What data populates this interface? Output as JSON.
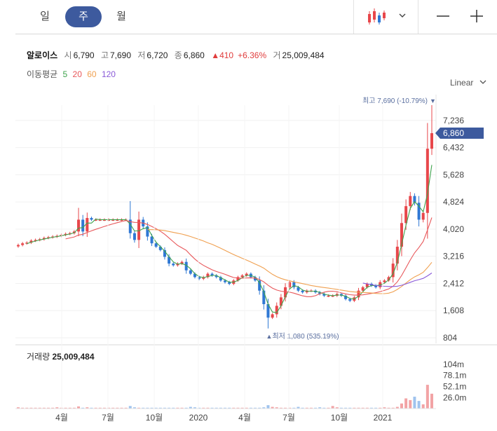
{
  "tabs": [
    {
      "label": "일",
      "active": false
    },
    {
      "label": "주",
      "active": true
    },
    {
      "label": "월",
      "active": false
    }
  ],
  "toolbar": {
    "chart_type_icon": "candlestick-icon",
    "dropdown_icon": "chevron-down-icon",
    "minus_icon": "zoom-out-icon",
    "plus_icon": "zoom-in-icon"
  },
  "stock": {
    "name": "알로이스",
    "open_label": "시",
    "open": "6,790",
    "high_label": "고",
    "high": "7,690",
    "low_label": "저",
    "low": "6,720",
    "close_label": "종",
    "close": "6,860",
    "change": "▲410",
    "change_pct": "+6.36%",
    "volume_label": "거",
    "volume": "25,009,484"
  },
  "ma": {
    "label": "이동평균",
    "items": [
      {
        "label": "5",
        "color": "#3fa34d"
      },
      {
        "label": "20",
        "color": "#e8575a"
      },
      {
        "label": "60",
        "color": "#f0a050"
      },
      {
        "label": "120",
        "color": "#8a5ad8"
      }
    ]
  },
  "scale_label": "Linear",
  "colors": {
    "up": "#e8474b",
    "down": "#2f78d4",
    "accent": "#3d5a9e"
  },
  "chart_data": {
    "type": "candlestick",
    "ylim": [
      804,
      7690
    ],
    "y_ticks": [
      "7,236",
      "6,432",
      "5,628",
      "4,824",
      "4,020",
      "3,216",
      "2,412",
      "1,608",
      "804"
    ],
    "x_ticks": [
      "4월",
      "7월",
      "10월",
      "2020",
      "4월",
      "7월",
      "10월",
      "2021"
    ],
    "high_marker": "최고 7,690 (-10.79%)",
    "low_marker": "최저 1,080 (535.19%)",
    "current_price": "6,860",
    "volume_title": "거래량",
    "volume_value": "25,009,484",
    "volume_ticks": [
      "104m",
      "78.1m",
      "52.1m",
      "26.0m"
    ],
    "candles_close": [
      3550,
      3600,
      3620,
      3680,
      3700,
      3720,
      3760,
      3780,
      3800,
      3820,
      3850,
      3880,
      3900,
      3950,
      4300,
      3950,
      4350,
      4300,
      4300,
      4300,
      4300,
      4300,
      4300,
      4300,
      4300,
      4300,
      3900,
      3700,
      4300,
      4100,
      3800,
      3600,
      3500,
      3400,
      3200,
      3000,
      2950,
      3000,
      3050,
      2800,
      2700,
      2600,
      2550,
      2600,
      2700,
      2650,
      2600,
      2500,
      2450,
      2400,
      2500,
      2600,
      2650,
      2700,
      2600,
      2500,
      2200,
      1800,
      1400,
      1500,
      1750,
      2000,
      2300,
      2450,
      2300,
      2200,
      2150,
      2200,
      2200,
      2150,
      2100,
      2050,
      2050,
      2050,
      2100,
      2050,
      1950,
      1900,
      2000,
      2200,
      2300,
      2400,
      2350,
      2300,
      2450,
      2500,
      2600,
      3000,
      3500,
      4200,
      4700,
      5000,
      4800,
      4300,
      4500,
      6400,
      6860
    ],
    "volume_values": [
      3,
      2,
      2,
      2,
      2,
      2,
      2,
      2,
      2,
      3,
      2,
      2,
      2,
      2,
      5,
      2,
      3,
      2,
      2,
      2,
      2,
      2,
      2,
      2,
      2,
      2,
      6,
      3,
      2,
      2,
      2,
      2,
      2,
      2,
      2,
      2,
      2,
      2,
      2,
      2,
      4,
      3,
      2,
      2,
      2,
      2,
      2,
      2,
      2,
      2,
      2,
      2,
      2,
      2,
      2,
      2,
      2,
      3,
      8,
      4,
      3,
      2,
      2,
      2,
      2,
      4,
      2,
      2,
      2,
      2,
      3,
      2,
      2,
      6,
      3,
      2,
      2,
      2,
      2,
      2,
      2,
      2,
      2,
      2,
      2,
      3,
      2,
      2,
      4,
      12,
      24,
      20,
      28,
      18,
      10,
      56,
      35
    ]
  }
}
